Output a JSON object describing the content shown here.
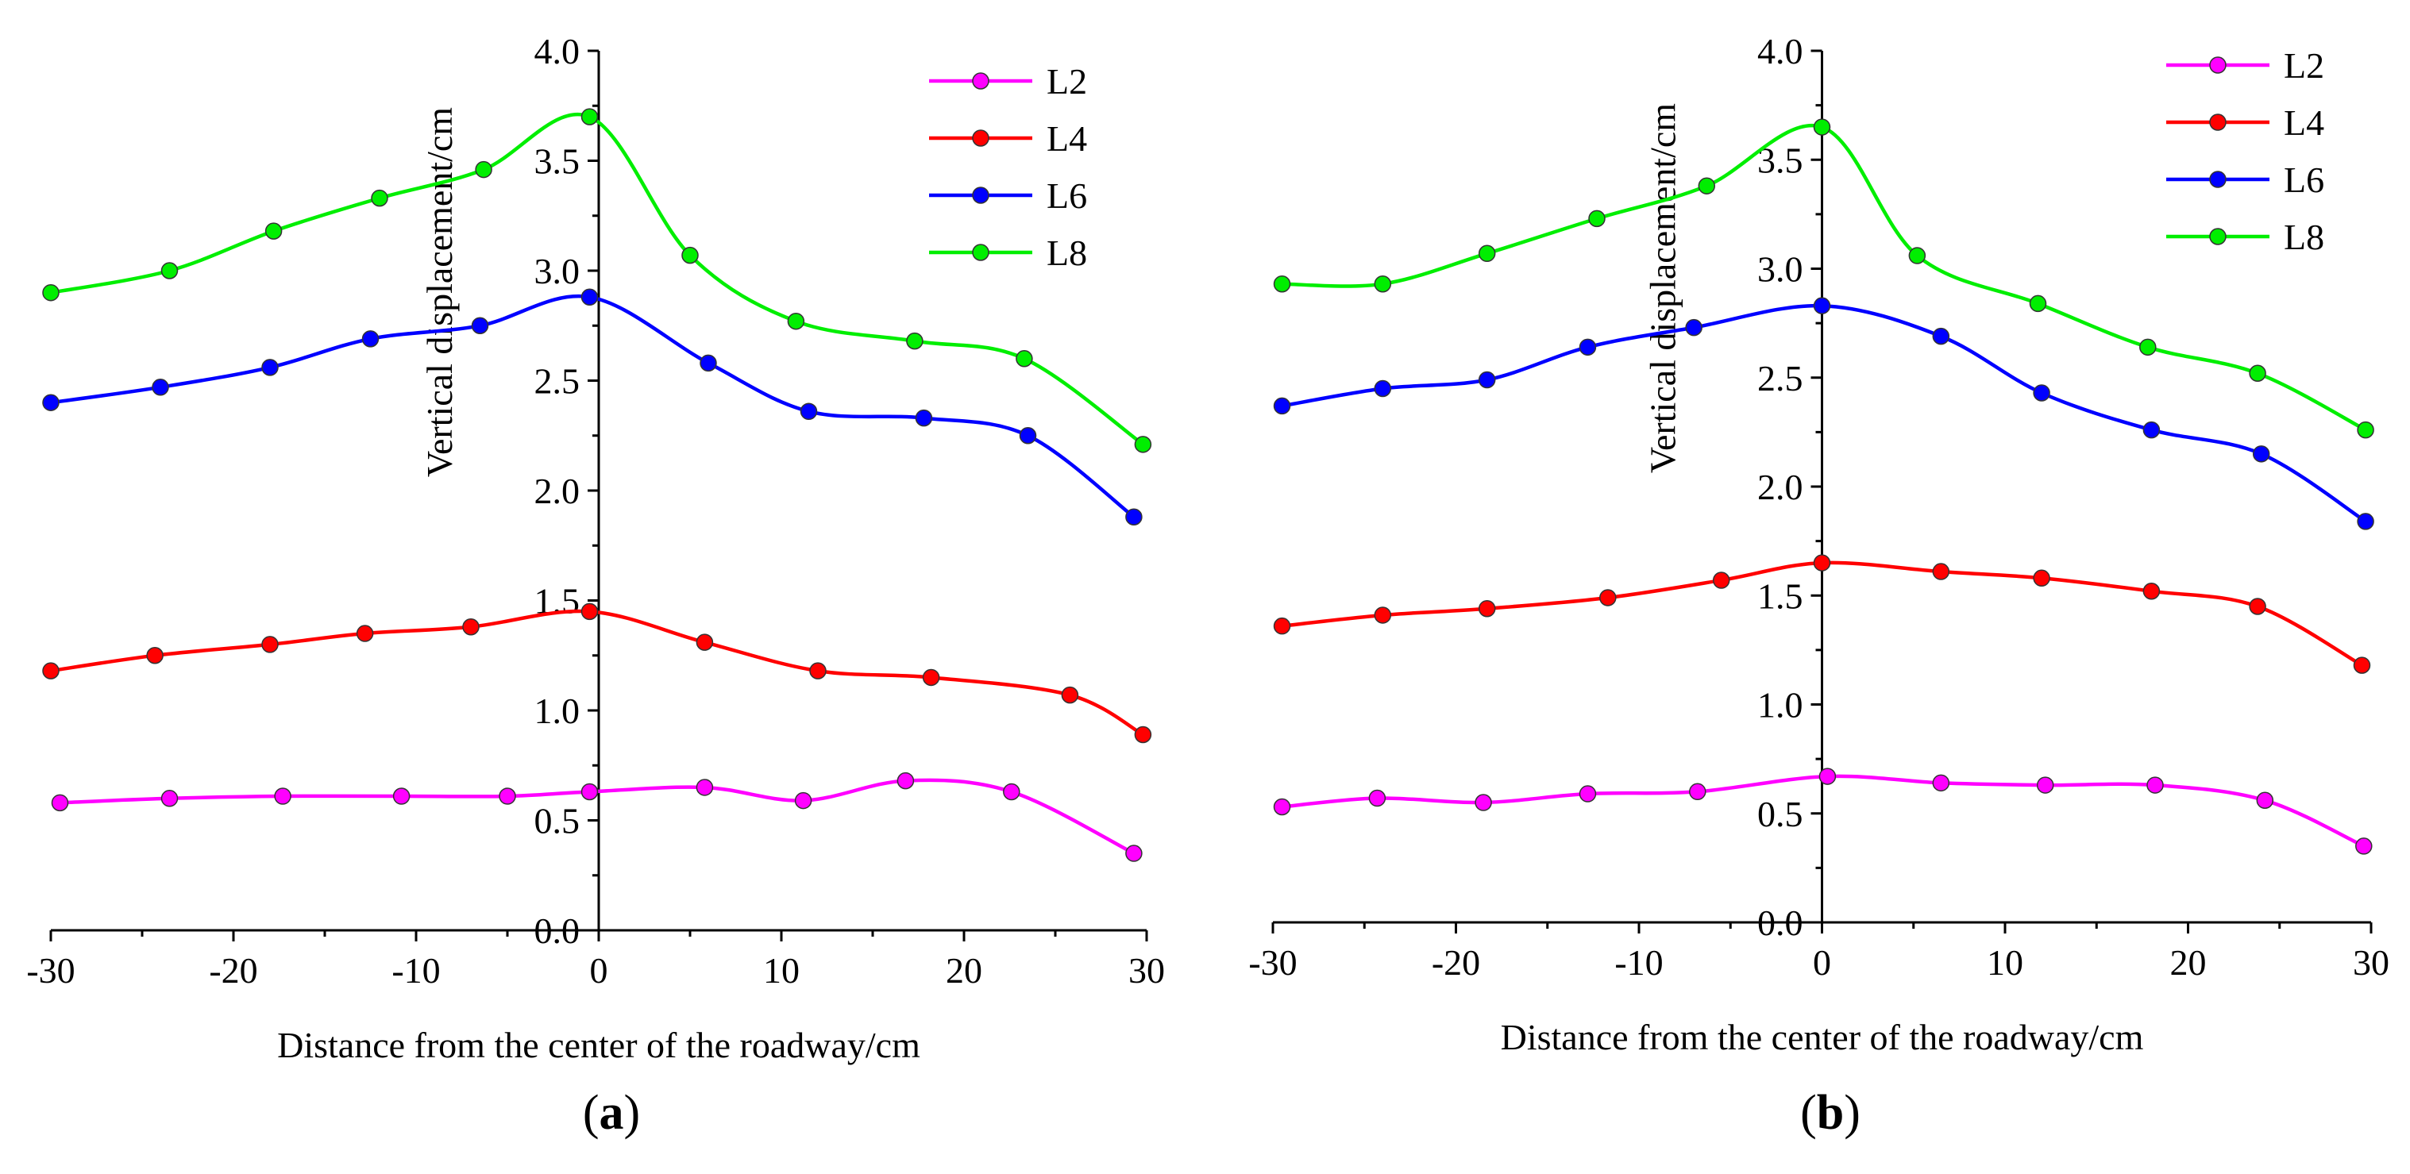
{
  "figure": {
    "panels": [
      "a",
      "b"
    ]
  },
  "chart_data": [
    {
      "panel_label": "a",
      "type": "line",
      "xlabel": "Distance from the center of the roadway/cm",
      "ylabel": "Vertical displacement/cm",
      "xlim": [
        -30,
        30
      ],
      "ylim": [
        0,
        4.0
      ],
      "xticks": [
        -30,
        -20,
        -10,
        0,
        10,
        20,
        30
      ],
      "yticks": [
        0,
        0.5,
        1.0,
        1.5,
        2.0,
        2.5,
        3.0,
        3.5,
        4.0
      ],
      "xtick_labels": [
        "-30",
        "-20",
        "-10",
        "0",
        "10",
        "20",
        "30"
      ],
      "ytick_labels": [
        "0.0",
        "0.5",
        "1.0",
        "1.5",
        "2.0",
        "2.5",
        "3.0",
        "3.5",
        "4.0"
      ],
      "legend_position": "top-right",
      "grid": false,
      "series": [
        {
          "name": "L2",
          "color": "#ff00ff",
          "x": [
            -29.5,
            -23.5,
            -17.3,
            -10.8,
            -5.0,
            -0.5,
            5.8,
            11.2,
            16.8,
            22.6,
            29.3
          ],
          "y": [
            0.58,
            0.6,
            0.61,
            0.61,
            0.61,
            0.63,
            0.65,
            0.59,
            0.68,
            0.63,
            0.35
          ]
        },
        {
          "name": "L4",
          "color": "#ff0000",
          "x": [
            -30,
            -24.3,
            -18.0,
            -12.8,
            -7.0,
            -0.5,
            5.8,
            12.0,
            18.2,
            25.8,
            29.8
          ],
          "y": [
            1.18,
            1.25,
            1.3,
            1.35,
            1.38,
            1.45,
            1.31,
            1.18,
            1.15,
            1.07,
            0.89
          ]
        },
        {
          "name": "L6",
          "color": "#0000ff",
          "x": [
            -30,
            -24.0,
            -18.0,
            -12.5,
            -6.5,
            -0.5,
            6.0,
            11.5,
            17.8,
            23.5,
            29.3
          ],
          "y": [
            2.4,
            2.47,
            2.56,
            2.69,
            2.75,
            2.88,
            2.58,
            2.36,
            2.33,
            2.25,
            1.88
          ]
        },
        {
          "name": "L8",
          "color": "#00ee00",
          "x": [
            -30,
            -23.5,
            -17.8,
            -12.0,
            -6.3,
            -0.5,
            5.0,
            10.8,
            17.3,
            23.3,
            29.8
          ],
          "y": [
            2.9,
            3.0,
            3.18,
            3.33,
            3.46,
            3.7,
            3.07,
            2.77,
            2.68,
            2.6,
            2.21
          ]
        }
      ]
    },
    {
      "panel_label": "b",
      "type": "line",
      "xlabel": "Distance from the center of the roadway/cm",
      "ylabel": "Vertical displacement/cm",
      "xlim": [
        -30,
        30
      ],
      "ylim": [
        0,
        4.0
      ],
      "xticks": [
        -30,
        -20,
        -10,
        0,
        10,
        20,
        30
      ],
      "yticks": [
        0,
        0.5,
        1.0,
        1.5,
        2.0,
        2.5,
        3.0,
        3.5,
        4.0
      ],
      "xtick_labels": [
        "-30",
        "-20",
        "-10",
        "0",
        "10",
        "20",
        "30"
      ],
      "ytick_labels": [
        "0.0",
        "0.5",
        "1.0",
        "1.5",
        "2.0",
        "2.5",
        "3.0",
        "3.5",
        "4.0"
      ],
      "legend_position": "top-right",
      "grid": false,
      "series": [
        {
          "name": "L2",
          "color": "#ff00ff",
          "x": [
            -29.5,
            -24.3,
            -18.5,
            -12.8,
            -6.8,
            0.3,
            6.5,
            12.2,
            18.2,
            24.2,
            29.6
          ],
          "y": [
            0.53,
            0.57,
            0.55,
            0.59,
            0.6,
            0.67,
            0.64,
            0.63,
            0.63,
            0.56,
            0.35
          ]
        },
        {
          "name": "L4",
          "color": "#ff0000",
          "x": [
            -29.5,
            -24.0,
            -18.3,
            -11.7,
            -5.5,
            0.0,
            6.5,
            12.0,
            18.0,
            23.8,
            29.5
          ],
          "y": [
            1.36,
            1.41,
            1.44,
            1.49,
            1.57,
            1.65,
            1.61,
            1.58,
            1.52,
            1.45,
            1.18
          ]
        },
        {
          "name": "L6",
          "color": "#0000ff",
          "x": [
            -29.5,
            -24.0,
            -18.3,
            -12.8,
            -7.0,
            0.0,
            6.5,
            12.0,
            18.0,
            24.0,
            29.7
          ],
          "y": [
            2.37,
            2.45,
            2.49,
            2.64,
            2.73,
            2.83,
            2.69,
            2.43,
            2.26,
            2.15,
            1.84
          ]
        },
        {
          "name": "L8",
          "color": "#00ee00",
          "x": [
            -29.5,
            -24.0,
            -18.3,
            -12.3,
            -6.3,
            0.0,
            5.2,
            11.8,
            17.8,
            23.8,
            29.7
          ],
          "y": [
            2.93,
            2.93,
            3.07,
            3.23,
            3.38,
            3.65,
            3.06,
            2.84,
            2.64,
            2.52,
            2.26
          ]
        }
      ]
    }
  ]
}
